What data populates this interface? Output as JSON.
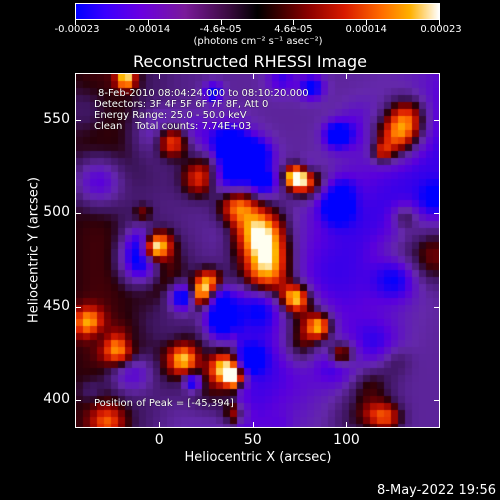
{
  "colorbar": {
    "ticks": [
      "-0.00023",
      "-0.00014",
      "-4.6e-05",
      "4.6e-05",
      "0.00014",
      "0.00023"
    ],
    "units": "(photons cm⁻² s⁻¹ asec⁻²)",
    "range": [
      -0.00023,
      0.00023
    ]
  },
  "plot": {
    "title": "Reconstructed RHESSI Image",
    "xlabel": "Heliocentric X (arcsec)",
    "ylabel": "Heliocentric Y (arcsec)",
    "x_ticks": [
      "0",
      "50",
      "100"
    ],
    "y_ticks": [
      "550",
      "500",
      "450",
      "400"
    ]
  },
  "info": {
    "time_range": "8-Feb-2010 08:04:24.000 to 08:10:20.000",
    "detectors": "Detectors: 3F 4F 5F 6F 7F 8F, Att 0",
    "energy": "Energy Range: 25.0 - 50.0 keV",
    "method": "Clean    Total counts: 7.74E+03",
    "peak": "Position of Peak = [-45,394]"
  },
  "footer": {
    "date": "8-May-2022 19:56"
  },
  "chart_data": {
    "type": "heatmap",
    "title": "Reconstructed RHESSI Image",
    "xlabel": "Heliocentric X (arcsec)",
    "ylabel": "Heliocentric Y (arcsec)",
    "xlim": [
      -45,
      150
    ],
    "ylim": [
      385,
      575
    ],
    "x_ticks": [
      0,
      50,
      100
    ],
    "y_ticks": [
      400,
      450,
      500,
      550
    ],
    "color_range": [
      -0.00023,
      0.00023
    ],
    "peak_position": [
      -45,
      394
    ]
  }
}
